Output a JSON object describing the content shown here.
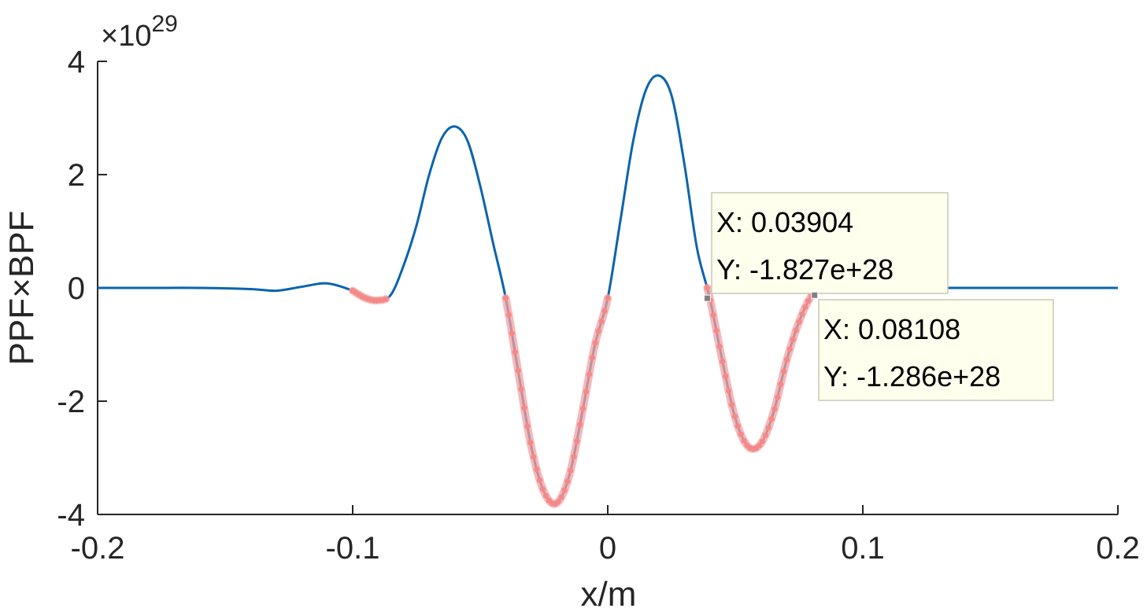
{
  "chart_data": {
    "type": "line",
    "title": "",
    "xlabel": "x/m",
    "ylabel": "PPF×BPF",
    "exponent_label": "×10",
    "exponent_power": "29",
    "xlim": [
      -0.2,
      0.2
    ],
    "ylim": [
      -4,
      4
    ],
    "x_ticks": [
      -0.2,
      -0.1,
      0,
      0.1,
      0.2
    ],
    "x_tick_labels": [
      "-0.2",
      "-0.1",
      "0",
      "0.1",
      "0.2"
    ],
    "y_ticks": [
      4,
      2,
      0,
      -2,
      -4
    ],
    "y_tick_labels": [
      "4",
      "2",
      "0",
      "-2",
      "-4"
    ],
    "grid": false,
    "colors": {
      "line": "#0a64ad",
      "highlight": "#f5a0a0",
      "highlight_dots": "#f28a8a",
      "datatip_bg": "#ffffee",
      "datatip_border": "#c8c8b4",
      "axis": "#262626"
    },
    "series": [
      {
        "x": [
          -0.2,
          -0.18,
          -0.16,
          -0.14,
          -0.13,
          -0.12,
          -0.11,
          -0.1,
          -0.095,
          -0.09,
          -0.085,
          -0.08,
          -0.075,
          -0.07,
          -0.065,
          -0.06,
          -0.055,
          -0.05,
          -0.045,
          -0.04,
          -0.035,
          -0.03,
          -0.025,
          -0.02,
          -0.015,
          -0.01,
          -0.005,
          0,
          0.005,
          0.01,
          0.015,
          0.02,
          0.025,
          0.03,
          0.035,
          0.04,
          0.045,
          0.05,
          0.055,
          0.06,
          0.065,
          0.07,
          0.075,
          0.08,
          0.085,
          0.09,
          0.1,
          0.12,
          0.14,
          0.16,
          0.18,
          0.2
        ],
        "y": [
          0,
          0,
          0,
          -0.02,
          -0.05,
          0.02,
          0.08,
          -0.05,
          -0.18,
          -0.22,
          -0.12,
          0.4,
          1.1,
          2.0,
          2.65,
          2.85,
          2.6,
          1.8,
          0.8,
          -0.18,
          -1.5,
          -2.8,
          -3.6,
          -3.8,
          -3.3,
          -2.2,
          -1.0,
          -0.18,
          1.2,
          2.6,
          3.5,
          3.75,
          3.4,
          2.2,
          0.7,
          -0.18,
          -1.3,
          -2.3,
          -2.8,
          -2.75,
          -2.2,
          -1.3,
          -0.6,
          -0.13,
          0.02,
          0.03,
          0.01,
          0,
          0,
          0,
          0,
          0
        ]
      }
    ],
    "highlight_regions": [
      {
        "x_range": [
          -0.1,
          -0.087
        ]
      },
      {
        "x_range": [
          -0.04,
          0
        ]
      },
      {
        "x_range": [
          0.039,
          0.081
        ]
      }
    ],
    "datatips": [
      {
        "x": 0.03904,
        "y": -0.1827,
        "x_text": "X: 0.03904",
        "y_text": "Y: -1.827e+28"
      },
      {
        "x": 0.08108,
        "y": -0.1286,
        "x_text": "X: 0.08108",
        "y_text": "Y: -1.286e+28"
      }
    ]
  }
}
